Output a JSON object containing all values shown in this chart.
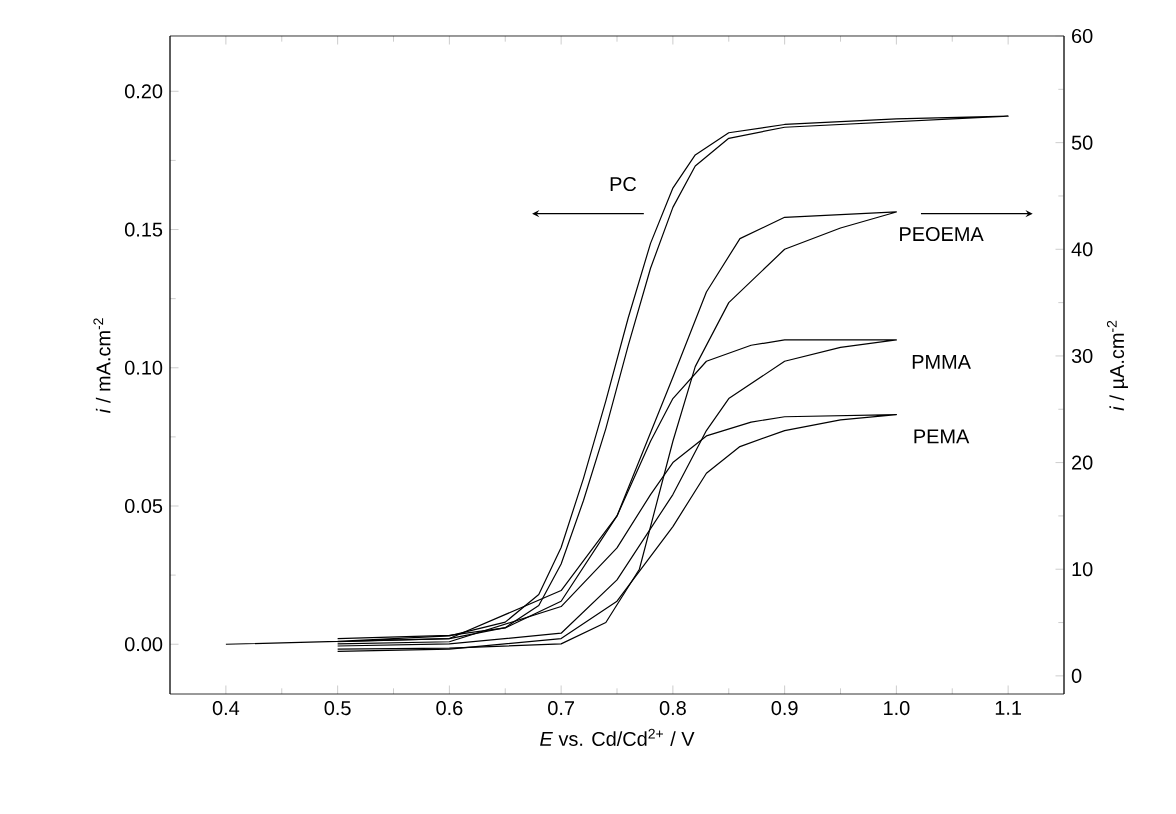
{
  "chart_data": {
    "type": "line",
    "xlabel": "*E* vs. Cd/Cd$^{2+}$ / V",
    "ylabel": "*i* / mA.cm$^{-2}$",
    "y2label": "*i* / µA.cm$^{-2}$",
    "xlim": [
      0.35,
      1.15
    ],
    "xticks": [
      0.4,
      0.5,
      0.6,
      0.7,
      0.8,
      0.9,
      {
        "value": 1,
        "label": "1.0"
      },
      1.1
    ],
    "ylim": [
      -0.018,
      0.22
    ],
    "yticks": [
      {
        "value": 0,
        "label": "0.00"
      },
      {
        "value": 0.05,
        "label": "0.05"
      },
      {
        "value": 0.1,
        "label": "0.10"
      },
      {
        "value": 0.15,
        "label": "0.15"
      },
      {
        "value": 0.2,
        "label": "0.20"
      }
    ],
    "y2lim": [
      -1.7,
      60
    ],
    "y2ticks": [
      0,
      10,
      20,
      30,
      40,
      50,
      60
    ],
    "series": [
      {
        "name": "PC",
        "color": "#000000",
        "x": [
          0.4,
          0.5,
          0.6,
          0.65,
          0.68,
          0.7,
          0.72,
          0.74,
          0.76,
          0.78,
          0.8,
          0.82,
          0.85,
          0.9,
          1.0,
          1.1,
          1.0,
          0.9,
          0.85,
          0.82,
          0.8,
          0.78,
          0.76,
          0.74,
          0.72,
          0.7,
          0.68,
          0.65,
          0.6,
          0.5
        ],
        "values": [
          0,
          0.001,
          0.003,
          0.008,
          0.018,
          0.035,
          0.06,
          0.088,
          0.118,
          0.145,
          0.165,
          0.177,
          0.185,
          0.188,
          0.19,
          0.191,
          0.189,
          0.187,
          0.183,
          0.173,
          0.158,
          0.136,
          0.108,
          0.078,
          0.052,
          0.029,
          0.014,
          0.006,
          0.002,
          0.001
        ]
      },
      {
        "name": "PEOEMA",
        "color": "#000000",
        "axis": "y2",
        "x": [
          0.5,
          0.6,
          0.65,
          0.7,
          0.75,
          0.8,
          0.83,
          0.86,
          0.9,
          1.0,
          0.95,
          0.9,
          0.85,
          0.82,
          0.8,
          0.77,
          0.74,
          0.7,
          0.6,
          0.5
        ],
        "values": [
          3.5,
          3.8,
          4.5,
          7,
          15,
          28,
          36,
          41,
          43,
          43.5,
          42,
          40,
          35,
          29,
          22,
          10,
          5,
          3,
          2.6,
          2.5
        ]
      },
      {
        "name": "PMMA",
        "color": "#000000",
        "axis": "y2",
        "x": [
          0.5,
          0.6,
          0.7,
          0.75,
          0.78,
          0.8,
          0.83,
          0.87,
          0.9,
          1.0,
          0.95,
          0.9,
          0.85,
          0.83,
          0.8,
          0.75,
          0.7,
          0.6,
          0.5
        ],
        "values": [
          3.2,
          3.5,
          8,
          15,
          22,
          26,
          29.5,
          31,
          31.5,
          31.5,
          30.8,
          29.5,
          26,
          23,
          17,
          9,
          4,
          3,
          2.8
        ]
      },
      {
        "name": "PEMA",
        "color": "#000000",
        "axis": "y2",
        "x": [
          0.5,
          0.6,
          0.7,
          0.75,
          0.78,
          0.8,
          0.83,
          0.87,
          0.9,
          1.0,
          0.95,
          0.9,
          0.86,
          0.83,
          0.8,
          0.75,
          0.7,
          0.6,
          0.5
        ],
        "values": [
          3,
          3.2,
          6.5,
          12,
          17,
          20,
          22.5,
          23.8,
          24.3,
          24.5,
          24,
          23,
          21.5,
          19,
          14,
          7,
          3.5,
          2.5,
          2.3
        ]
      }
    ]
  }
}
